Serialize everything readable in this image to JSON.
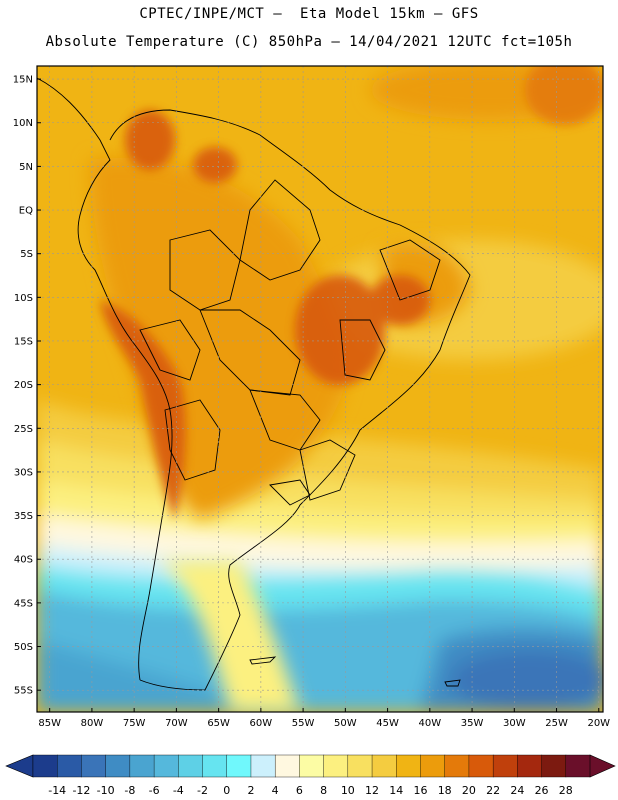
{
  "header": {
    "line1": "CPTEC/INPE/MCT –  Eta Model 15km – GFS",
    "line2": "Absolute Temperature (C) 850hPa – 14/04/2021 12UTC fct=105h"
  },
  "map": {
    "lat_labels": [
      "15N",
      "10N",
      "5N",
      "EQ",
      "5S",
      "10S",
      "15S",
      "20S",
      "25S",
      "30S",
      "35S",
      "40S",
      "45S",
      "50S",
      "55S"
    ],
    "lon_labels": [
      "85W",
      "80W",
      "75W",
      "70W",
      "65W",
      "60W",
      "55W",
      "50W",
      "45W",
      "40W",
      "35W",
      "30W",
      "25W",
      "20W"
    ],
    "lat_values": [
      15,
      10,
      5,
      0,
      -5,
      -10,
      -15,
      -20,
      -25,
      -30,
      -35,
      -40,
      -45,
      -50,
      -55
    ],
    "lon_values": [
      -85,
      -80,
      -75,
      -70,
      -65,
      -60,
      -55,
      -50,
      -45,
      -40,
      -35,
      -30,
      -25,
      -20
    ],
    "lat_range": [
      -57.5,
      16.5
    ],
    "lon_range": [
      -86.5,
      -19.5
    ],
    "gridlines": "dotted"
  },
  "colorbar": {
    "labels": [
      "-14",
      "-12",
      "-10",
      "-8",
      "-6",
      "-4",
      "-2",
      "0",
      "2",
      "4",
      "6",
      "8",
      "10",
      "12",
      "14",
      "16",
      "18",
      "20",
      "22",
      "24",
      "26",
      "28"
    ],
    "colors": [
      "#1c3c8c",
      "#2a5aa6",
      "#3a74b8",
      "#3f8cc4",
      "#4aa4d0",
      "#55b8dc",
      "#5ed0e6",
      "#66e4f0",
      "#70f8fc",
      "#ccf0fc",
      "#fff8e0",
      "#fcfca4",
      "#fcf080",
      "#f8e060",
      "#f4cc40",
      "#f0b414",
      "#ec9c0c",
      "#e47a0a",
      "#d85a0a",
      "#c0400c",
      "#a4280e",
      "#7c1a10",
      "#6a0f2a"
    ],
    "extend_low_color": "#1c3c8c",
    "extend_high_color": "#6a0f2a"
  }
}
